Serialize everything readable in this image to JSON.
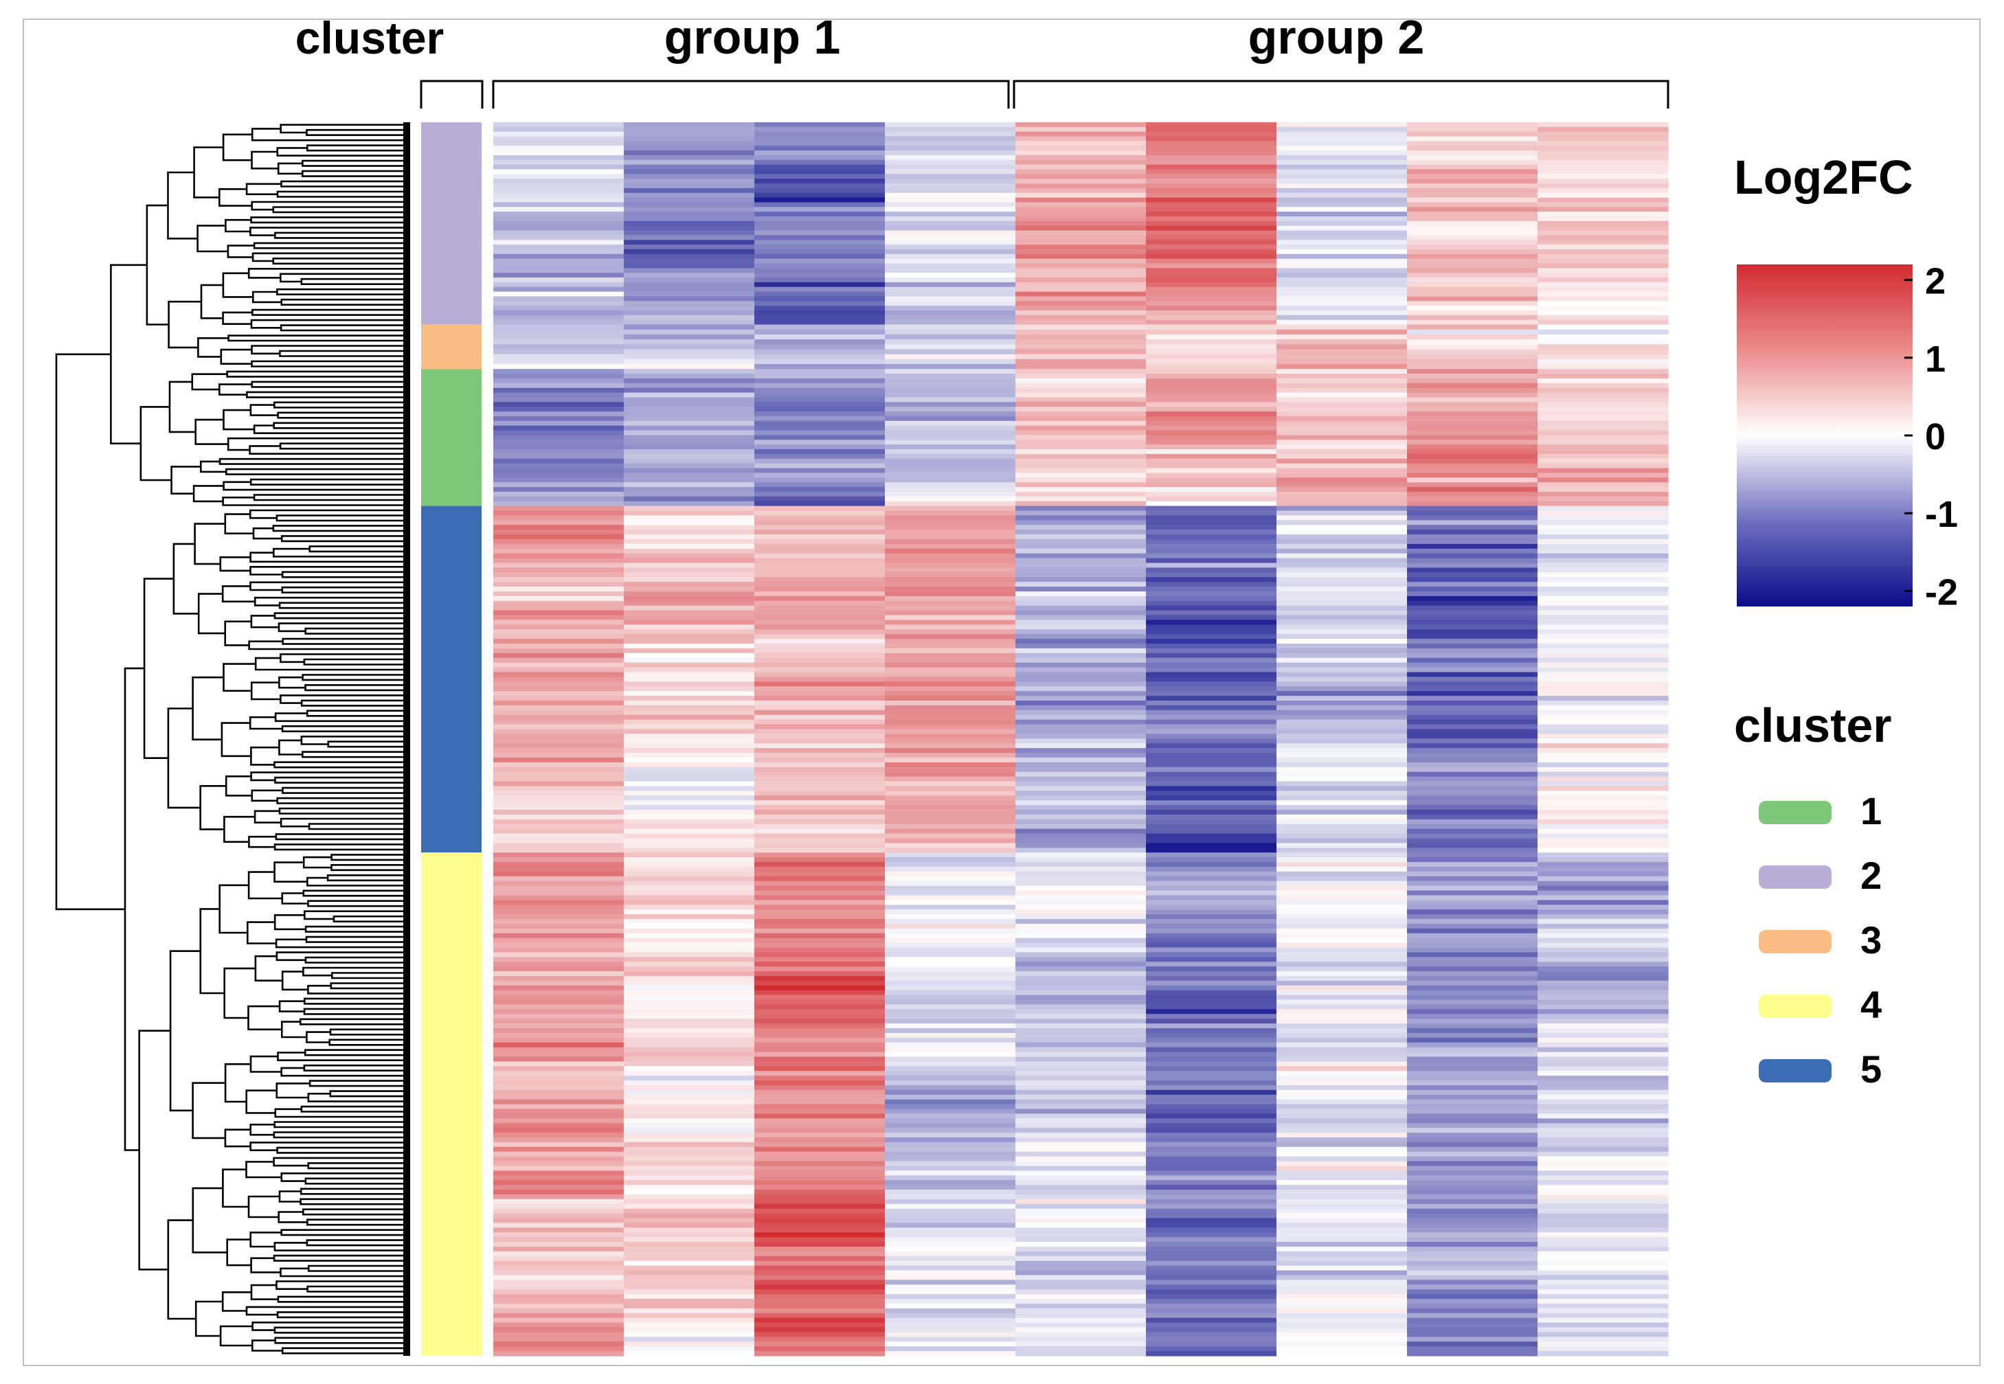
{
  "chart_data": {
    "type": "heatmap",
    "title": "",
    "column_groups": [
      {
        "label": "group 1",
        "columns": 4
      },
      {
        "label": "group 2",
        "columns": 5
      }
    ],
    "annotation_header": "cluster",
    "colorbar": {
      "title": "Log2FC",
      "range": [
        -2.2,
        2.2
      ],
      "ticks": [
        2,
        1,
        0,
        -1,
        -2
      ],
      "tick_labels": [
        "2",
        "1",
        "0",
        "-1",
        "-2"
      ],
      "colors": {
        "low": "#0b0b8a",
        "mid": "#ffffff",
        "high": "#d12b30"
      }
    },
    "legend": {
      "title": "cluster",
      "items": [
        {
          "label": "1",
          "color": "#7ec87c"
        },
        {
          "label": "2",
          "color": "#bbaed6"
        },
        {
          "label": "3",
          "color": "#fbbd84"
        },
        {
          "label": "4",
          "color": "#fefe8d"
        },
        {
          "label": "5",
          "color": "#3a6db3"
        }
      ]
    },
    "row_clusters_top_to_bottom": [
      {
        "cluster": "2",
        "fraction": 0.164,
        "column_means": [
          -0.4,
          -0.8,
          -1.1,
          -0.3,
          0.9,
          1.3,
          -0.3,
          0.8,
          0.4
        ]
      },
      {
        "cluster": "3",
        "fraction": 0.036,
        "column_means": [
          -0.3,
          -0.6,
          -0.6,
          -0.4,
          0.8,
          0.5,
          0.4,
          0.6,
          0.2
        ]
      },
      {
        "cluster": "1",
        "fraction": 0.111,
        "column_means": [
          -1.0,
          -0.7,
          -1.1,
          -0.5,
          0.6,
          0.6,
          0.5,
          1.0,
          0.9
        ]
      },
      {
        "cluster": "5",
        "fraction": 0.281,
        "column_means": [
          0.9,
          0.6,
          0.8,
          0.8,
          -0.8,
          -1.5,
          -0.5,
          -1.3,
          -0.3
        ]
      },
      {
        "cluster": "4",
        "fraction": 0.408,
        "column_means": [
          1.0,
          0.5,
          1.5,
          -0.3,
          -0.2,
          -1.2,
          -0.3,
          -1.0,
          -0.4
        ]
      }
    ]
  }
}
